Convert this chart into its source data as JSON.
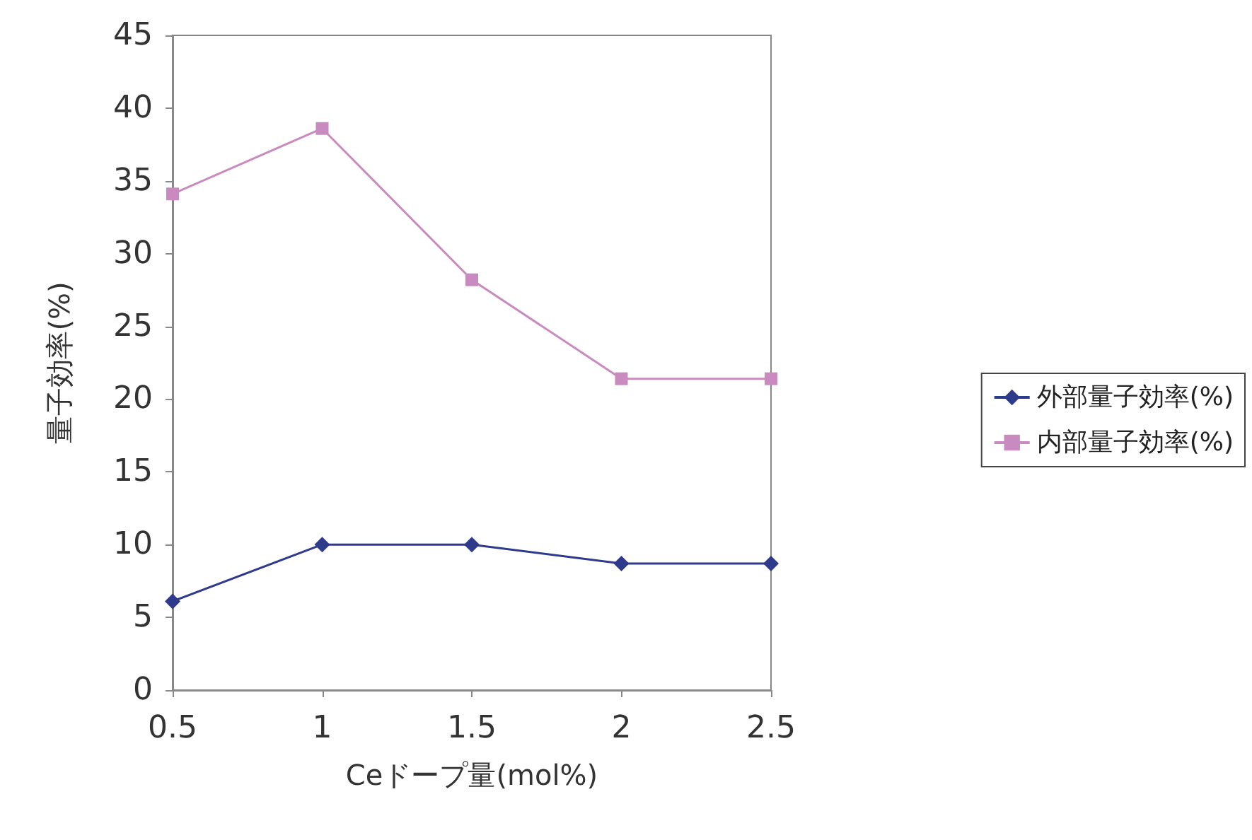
{
  "chart_data": {
    "type": "line",
    "xlabel": "Ceドープ量(mol%)",
    "ylabel": "量子効率(%)",
    "x": [
      0.5,
      1,
      1.5,
      2,
      2.5
    ],
    "xlim": [
      0.5,
      2.5
    ],
    "xticks": [
      0.5,
      1,
      1.5,
      2,
      2.5
    ],
    "ylim": [
      0,
      45
    ],
    "yticks": [
      0,
      5,
      10,
      15,
      20,
      25,
      30,
      35,
      40,
      45
    ],
    "series": [
      {
        "name": "外部量子効率(%)",
        "color": "#2e3a8c",
        "marker": "diamond",
        "values": [
          6.1,
          10,
          10,
          8.7,
          8.7
        ]
      },
      {
        "name": "内部量子効率(%)",
        "color": "#c98bbf",
        "marker": "square",
        "values": [
          34.1,
          38.6,
          28.2,
          21.4,
          21.4
        ]
      }
    ],
    "grid": false,
    "legend": "right"
  }
}
